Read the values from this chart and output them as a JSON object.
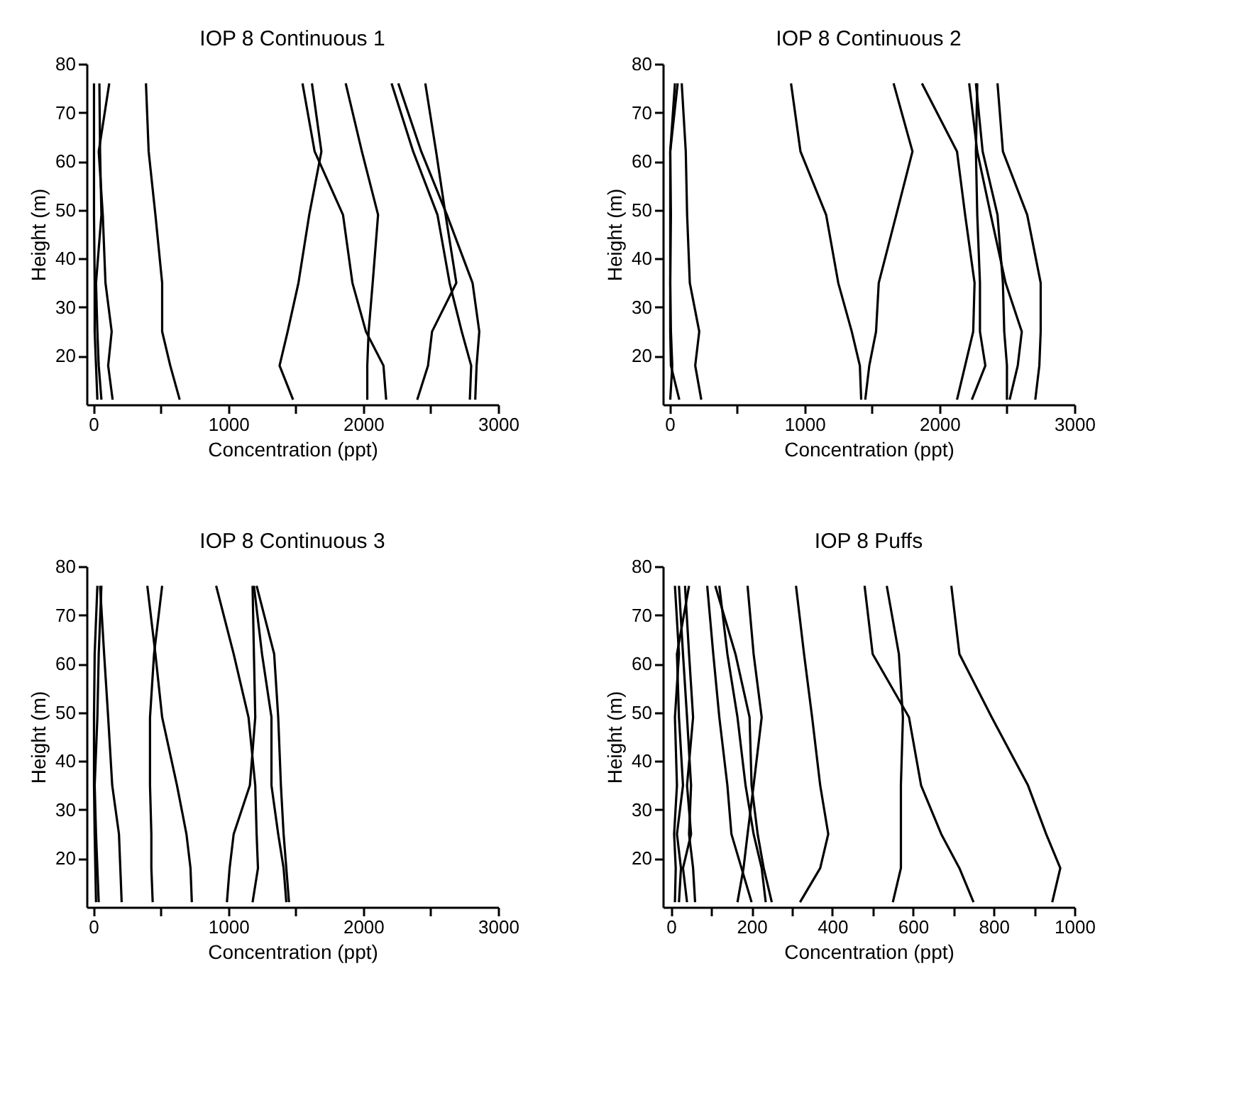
{
  "chart_data": [
    {
      "type": "line",
      "title": "IOP 8 Continuous 1",
      "xlabel": "Concentration (ppt)",
      "ylabel": "Height (m)",
      "xlim": [
        -50,
        3000
      ],
      "xticks": [
        0,
        {
          "value": 500,
          "label": null
        },
        1000,
        {
          "value": 1500,
          "label": null
        },
        2000,
        {
          "value": 2500,
          "label": null
        },
        3000
      ],
      "ylim": [
        10,
        80
      ],
      "yticks": [
        20,
        30,
        40,
        50,
        60,
        70,
        80
      ],
      "grid": false,
      "legend": false,
      "line_style": "solid",
      "marker": "none",
      "series": [
        {
          "color": "#000000",
          "x": [
            30,
            20,
            10,
            10,
            5,
            5,
            5
          ],
          "values": [
            11,
            18,
            25,
            35,
            49,
            62,
            76
          ]
        },
        {
          "color": "#000000",
          "x": [
            60,
            40,
            30,
            20,
            60,
            50,
            45
          ],
          "values": [
            11,
            18,
            25,
            35,
            49,
            62,
            76
          ]
        },
        {
          "color": "#000000",
          "x": [
            143,
            110,
            136,
            90,
            70,
            40,
            118
          ],
          "values": [
            11,
            18,
            25,
            35,
            49,
            62,
            76
          ]
        },
        {
          "color": "#000000",
          "x": [
            640,
            570,
            510,
            510,
            460,
            410,
            390
          ],
          "values": [
            11,
            18,
            25,
            35,
            49,
            62,
            76
          ]
        },
        {
          "color": "#000000",
          "x": [
            1480,
            1380,
            1440,
            1520,
            1600,
            1690,
            1620
          ],
          "values": [
            11,
            18,
            25,
            35,
            49,
            62,
            76
          ]
        },
        {
          "color": "#000000",
          "x": [
            2170,
            2150,
            2020,
            1920,
            1850,
            1640,
            1550
          ],
          "values": [
            11,
            18,
            25,
            35,
            49,
            62,
            76
          ]
        },
        {
          "color": "#000000",
          "x": [
            2030,
            2030,
            2040,
            2070,
            2110,
            1990,
            1870
          ],
          "values": [
            11,
            18,
            25,
            35,
            49,
            62,
            76
          ]
        },
        {
          "color": "#000000",
          "x": [
            2790,
            2800,
            2730,
            2640,
            2550,
            2370,
            2210
          ],
          "values": [
            11,
            18,
            25,
            35,
            49,
            62,
            76
          ]
        },
        {
          "color": "#000000",
          "x": [
            2830,
            2840,
            2860,
            2810,
            2620,
            2430,
            2260
          ],
          "values": [
            11,
            18,
            25,
            35,
            49,
            62,
            76
          ]
        },
        {
          "color": "#000000",
          "x": [
            2400,
            2480,
            2510,
            2690,
            2610,
            2540,
            2460
          ],
          "values": [
            11,
            18,
            25,
            35,
            49,
            62,
            76
          ]
        }
      ]
    },
    {
      "type": "line",
      "title": "IOP 8 Continuous 2",
      "xlabel": "Concentration (ppt)",
      "ylabel": "Height (m)",
      "xlim": [
        -50,
        3000
      ],
      "xticks": [
        0,
        {
          "value": 500,
          "label": null
        },
        1000,
        {
          "value": 1500,
          "label": null
        },
        2000,
        {
          "value": 2500,
          "label": null
        },
        3000
      ],
      "ylim": [
        10,
        80
      ],
      "yticks": [
        20,
        30,
        40,
        50,
        60,
        70,
        80
      ],
      "grid": false,
      "legend": false,
      "line_style": "solid",
      "marker": "none",
      "series": [
        {
          "color": "#000000",
          "x": [
            72,
            10,
            5,
            5,
            5,
            5,
            40
          ],
          "values": [
            11,
            18,
            25,
            35,
            49,
            62,
            76
          ]
        },
        {
          "color": "#000000",
          "x": [
            5,
            20,
            10,
            5,
            10,
            5,
            60
          ],
          "values": [
            11,
            18,
            25,
            35,
            49,
            62,
            76
          ]
        },
        {
          "color": "#000000",
          "x": [
            235,
            190,
            220,
            150,
            130,
            120,
            90
          ],
          "values": [
            11,
            18,
            25,
            35,
            49,
            62,
            76
          ]
        },
        {
          "color": "#000000",
          "x": [
            1420,
            1410,
            1350,
            1250,
            1160,
            970,
            900
          ],
          "values": [
            11,
            18,
            25,
            35,
            49,
            62,
            76
          ]
        },
        {
          "color": "#000000",
          "x": [
            1450,
            1480,
            1530,
            1550,
            1680,
            1800,
            1660
          ],
          "values": [
            11,
            18,
            25,
            35,
            49,
            62,
            76
          ]
        },
        {
          "color": "#000000",
          "x": [
            2130,
            2190,
            2250,
            2260,
            2190,
            2130,
            1870
          ],
          "values": [
            11,
            18,
            25,
            35,
            49,
            62,
            76
          ]
        },
        {
          "color": "#000000",
          "x": [
            2520,
            2580,
            2610,
            2490,
            2380,
            2280,
            2220
          ],
          "values": [
            11,
            18,
            25,
            35,
            49,
            62,
            76
          ]
        },
        {
          "color": "#000000",
          "x": [
            2500,
            2500,
            2480,
            2470,
            2430,
            2320,
            2270
          ],
          "values": [
            11,
            18,
            25,
            35,
            49,
            62,
            76
          ]
        },
        {
          "color": "#000000",
          "x": [
            2240,
            2340,
            2300,
            2300,
            2280,
            2270,
            2280
          ],
          "values": [
            11,
            18,
            25,
            35,
            49,
            62,
            76
          ]
        },
        {
          "color": "#000000",
          "x": [
            2710,
            2740,
            2750,
            2750,
            2650,
            2470,
            2430
          ],
          "values": [
            11,
            18,
            25,
            35,
            49,
            62,
            76
          ]
        }
      ]
    },
    {
      "type": "line",
      "title": "IOP 8 Continuous 3",
      "xlabel": "Concentration (ppt)",
      "ylabel": "Height (m)",
      "xlim": [
        -50,
        3000
      ],
      "xticks": [
        0,
        {
          "value": 500,
          "label": null
        },
        1000,
        {
          "value": 1500,
          "label": null
        },
        2000,
        {
          "value": 2500,
          "label": null
        },
        3000
      ],
      "ylim": [
        10,
        80
      ],
      "yticks": [
        20,
        30,
        40,
        50,
        60,
        70,
        80
      ],
      "grid": false,
      "legend": false,
      "line_style": "solid",
      "marker": "none",
      "series": [
        {
          "color": "#000000",
          "x": [
            20,
            15,
            10,
            5,
            5,
            10,
            30
          ],
          "values": [
            11,
            18,
            25,
            35,
            49,
            62,
            76
          ]
        },
        {
          "color": "#000000",
          "x": [
            40,
            30,
            20,
            10,
            30,
            40,
            60
          ],
          "values": [
            11,
            18,
            25,
            35,
            49,
            62,
            76
          ]
        },
        {
          "color": "#000000",
          "x": [
            210,
            200,
            190,
            140,
            110,
            80,
            50
          ],
          "values": [
            11,
            18,
            25,
            35,
            49,
            62,
            76
          ]
        },
        {
          "color": "#000000",
          "x": [
            440,
            430,
            430,
            420,
            420,
            450,
            510
          ],
          "values": [
            11,
            18,
            25,
            35,
            49,
            62,
            76
          ]
        },
        {
          "color": "#000000",
          "x": [
            730,
            720,
            690,
            620,
            510,
            460,
            400
          ],
          "values": [
            11,
            18,
            25,
            35,
            49,
            62,
            76
          ]
        },
        {
          "color": "#000000",
          "x": [
            1180,
            1220,
            1210,
            1200,
            1150,
            1040,
            910
          ],
          "values": [
            11,
            18,
            25,
            35,
            49,
            62,
            76
          ]
        },
        {
          "color": "#000000",
          "x": [
            990,
            1010,
            1040,
            1160,
            1200,
            1190,
            1180
          ],
          "values": [
            11,
            18,
            25,
            35,
            49,
            62,
            76
          ]
        },
        {
          "color": "#000000",
          "x": [
            1430,
            1410,
            1370,
            1320,
            1320,
            1250,
            1190
          ],
          "values": [
            11,
            18,
            25,
            35,
            49,
            62,
            76
          ]
        },
        {
          "color": "#000000",
          "x": [
            1450,
            1430,
            1410,
            1390,
            1370,
            1340,
            1210
          ],
          "values": [
            11,
            18,
            25,
            35,
            49,
            62,
            76
          ]
        }
      ]
    },
    {
      "type": "line",
      "title": "IOP 8 Puffs",
      "xlabel": "Concentration (ppt)",
      "ylabel": "Height (m)",
      "xlim": [
        -20,
        1000
      ],
      "xticks": [
        0,
        {
          "value": 100,
          "label": null
        },
        200,
        {
          "value": 300,
          "label": null
        },
        400,
        {
          "value": 500,
          "label": null
        },
        600,
        {
          "value": 700,
          "label": null
        },
        800,
        {
          "value": 900,
          "label": null
        },
        1000
      ],
      "ylim": [
        10,
        80
      ],
      "yticks": [
        20,
        30,
        40,
        50,
        60,
        70,
        80
      ],
      "grid": false,
      "legend": false,
      "line_style": "solid",
      "marker": "none",
      "series": [
        {
          "color": "#000000",
          "x": [
            10,
            12,
            8,
            15,
            10,
            20,
            10
          ],
          "values": [
            11,
            18,
            25,
            35,
            49,
            62,
            76
          ]
        },
        {
          "color": "#000000",
          "x": [
            20,
            25,
            15,
            30,
            20,
            15,
            45
          ],
          "values": [
            11,
            18,
            25,
            35,
            49,
            62,
            76
          ]
        },
        {
          "color": "#000000",
          "x": [
            40,
            30,
            50,
            40,
            55,
            45,
            35
          ],
          "values": [
            11,
            18,
            25,
            35,
            49,
            62,
            76
          ]
        },
        {
          "color": "#000000",
          "x": [
            60,
            55,
            45,
            50,
            40,
            30,
            20
          ],
          "values": [
            11,
            18,
            25,
            35,
            49,
            62,
            76
          ]
        },
        {
          "color": "#000000",
          "x": [
            200,
            175,
            150,
            140,
            120,
            105,
            90
          ],
          "values": [
            11,
            18,
            25,
            35,
            49,
            62,
            76
          ]
        },
        {
          "color": "#000000",
          "x": [
            235,
            225,
            205,
            185,
            165,
            140,
            120
          ],
          "values": [
            11,
            18,
            25,
            35,
            49,
            62,
            76
          ]
        },
        {
          "color": "#000000",
          "x": [
            250,
            230,
            215,
            200,
            195,
            160,
            110
          ],
          "values": [
            11,
            18,
            25,
            35,
            49,
            62,
            76
          ]
        },
        {
          "color": "#000000",
          "x": [
            165,
            180,
            190,
            205,
            225,
            205,
            190
          ],
          "values": [
            11,
            18,
            25,
            35,
            49,
            62,
            76
          ]
        },
        {
          "color": "#000000",
          "x": [
            320,
            370,
            390,
            370,
            350,
            330,
            310
          ],
          "values": [
            11,
            18,
            25,
            35,
            49,
            62,
            76
          ]
        },
        {
          "color": "#000000",
          "x": [
            550,
            570,
            570,
            570,
            575,
            565,
            535
          ],
          "values": [
            11,
            18,
            25,
            35,
            49,
            62,
            76
          ]
        },
        {
          "color": "#000000",
          "x": [
            750,
            715,
            670,
            620,
            590,
            500,
            480
          ],
          "values": [
            11,
            18,
            25,
            35,
            49,
            62,
            76
          ]
        },
        {
          "color": "#000000",
          "x": [
            945,
            965,
            930,
            885,
            795,
            715,
            695
          ],
          "values": [
            11,
            18,
            25,
            35,
            49,
            62,
            76
          ]
        }
      ]
    }
  ]
}
